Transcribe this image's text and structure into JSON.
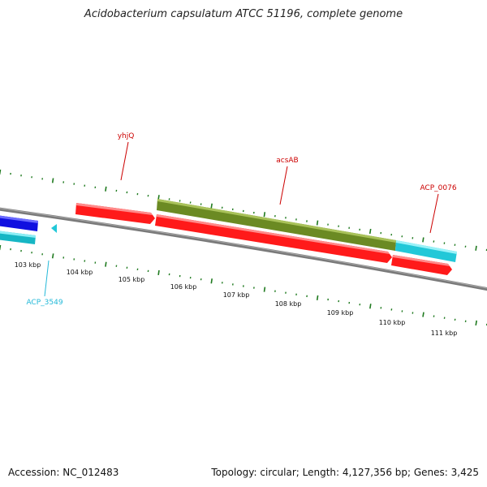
{
  "title": "Acidobacterium capsulatum ATCC 51196, complete genome",
  "footer": {
    "accession": "Accession: NC_012483",
    "summary": "Topology: circular; Length: 4,127,356 bp; Genes: 3,425"
  },
  "colors": {
    "backbone": "#7a7a7a",
    "tick": "#1f7a1f",
    "red_gene": "#ff1a1a",
    "olive_gene": "#6b8a23",
    "cyan_gene": "#22c8d8",
    "blue_gene": "#1010e0",
    "red_label": "#cc0000",
    "cyan_label": "#22b8d8"
  },
  "ticks": {
    "labels": [
      "103 kbp",
      "104 kbp",
      "105 kbp",
      "106 kbp",
      "107 kbp",
      "108 kbp",
      "109 kbp",
      "110 kbp",
      "111 kbp"
    ]
  },
  "genes": {
    "labels": {
      "yhjQ": "yhjQ",
      "acsAB": "acsAB",
      "ACP_0076": "ACP_0076",
      "ACP_3549": "ACP_3549"
    }
  }
}
